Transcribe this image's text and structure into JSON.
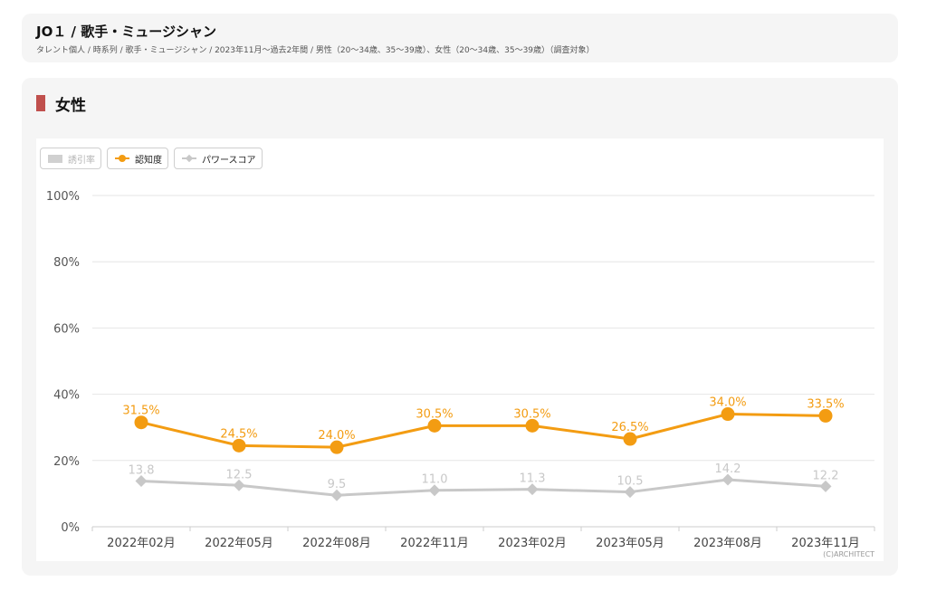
{
  "header": {
    "title": "JO１ / 歌手・ミュージシャン",
    "subtitle": "タレント個人 / 時系列 / 歌手・ミュージシャン / 2023年11月〜過去2年間 / 男性（20〜34歳、35〜39歳）、女性（20〜34歳、35〜39歳）（調査対象）"
  },
  "section": {
    "title": "女性"
  },
  "legend": {
    "bar_label": "誘引率",
    "awareness_label": "認知度",
    "power_label": "パワースコア"
  },
  "copyright": "(C)ARCHITECT",
  "colors": {
    "awareness": "#f39c12",
    "power": "#c8c8c8",
    "accent": "#c0504d"
  },
  "chart_data": {
    "type": "line",
    "categories": [
      "2022年02月",
      "2022年05月",
      "2022年08月",
      "2022年11月",
      "2023年02月",
      "2023年05月",
      "2023年08月",
      "2023年11月"
    ],
    "ylim": [
      0,
      100
    ],
    "yticks": [
      "0%",
      "20%",
      "40%",
      "60%",
      "80%",
      "100%"
    ],
    "grid": true,
    "legend_position": "top-left",
    "series": [
      {
        "name": "認知度",
        "values": [
          31.5,
          24.5,
          24.0,
          30.5,
          30.5,
          26.5,
          34.0,
          33.5
        ],
        "labels": [
          "31.5%",
          "24.5%",
          "24.0%",
          "30.5%",
          "30.5%",
          "26.5%",
          "34.0%",
          "33.5%"
        ],
        "marker": "circle",
        "color": "#f39c12"
      },
      {
        "name": "パワースコア",
        "values": [
          13.8,
          12.5,
          9.5,
          11.0,
          11.3,
          10.5,
          14.2,
          12.2
        ],
        "labels": [
          "13.8",
          "12.5",
          "9.5",
          "11.0",
          "11.3",
          "10.5",
          "14.2",
          "12.2"
        ],
        "marker": "diamond",
        "color": "#c8c8c8"
      }
    ]
  }
}
